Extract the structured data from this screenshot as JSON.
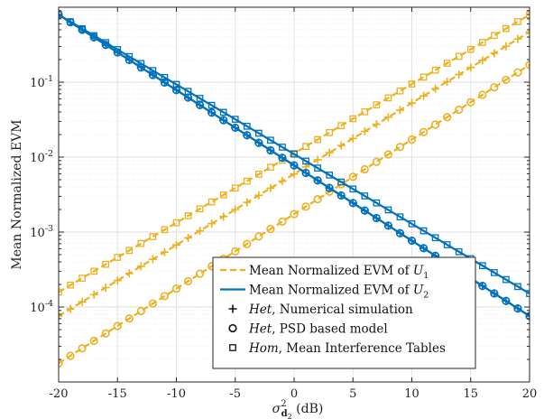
{
  "chart_data": {
    "type": "line",
    "y_scale": "log",
    "grid": true,
    "legend_position": "bottom-right",
    "xlabel": "σ²_d₂ (dB)",
    "ylabel": "Mean Normalized EVM",
    "xlim": [
      -20,
      20
    ],
    "ylim_exponents": [
      -5,
      0
    ],
    "x_ticks": [
      "-20",
      "-15",
      "-10",
      "-5",
      "0",
      "5",
      "10",
      "15",
      "20"
    ],
    "y_ticks": [
      "10^-4",
      "10^-3",
      "10^-2",
      "10^-1"
    ],
    "colors": {
      "U1": "#EDB120",
      "U2": "#0072BD"
    },
    "series": [
      {
        "user": "U1",
        "method": "Hom",
        "x_start": -20,
        "x_end": 20,
        "log10_y_start": -3.8,
        "log10_y_end": -0.1,
        "marker": "square",
        "line": "dashed"
      },
      {
        "user": "U1",
        "method": "Het-sim",
        "x_start": -20,
        "x_end": 20,
        "log10_y_start": -4.12,
        "log10_y_end": -0.33,
        "marker": "plus",
        "line": "dashed"
      },
      {
        "user": "U1",
        "method": "Het-PSD",
        "x_start": -20,
        "x_end": 20,
        "log10_y_start": -4.75,
        "log10_y_end": -0.77,
        "marker": "circle",
        "line": "dashed"
      },
      {
        "user": "U2",
        "method": "Hom",
        "x_start": -20,
        "x_end": 20,
        "log10_y_start": -0.1,
        "log10_y_end": -3.82,
        "marker": "square",
        "line": "solid"
      },
      {
        "user": "U2",
        "method": "Het-sim",
        "x_start": -20,
        "x_end": 20,
        "log10_y_start": -0.1,
        "log10_y_end": -4.12,
        "marker": "plus",
        "line": "solid"
      },
      {
        "user": "U2",
        "method": "Het-PSD",
        "x_start": -20,
        "x_end": 20,
        "log10_y_start": -0.1,
        "log10_y_end": -4.12,
        "marker": "circle",
        "line": "solid"
      }
    ],
    "legend": [
      {
        "prefix": "",
        "text": "Mean Normalized EVM of ",
        "sym": "U",
        "sub": "1",
        "kind": "dashed-u1"
      },
      {
        "prefix": "",
        "text": "Mean Normalized EVM of ",
        "sym": "U",
        "sub": "2",
        "kind": "solid-u2"
      },
      {
        "prefix": "Het",
        "text": ", Numerical simulation",
        "sym": "",
        "sub": "",
        "kind": "plus"
      },
      {
        "prefix": "Het",
        "text": ", PSD based model",
        "sym": "",
        "sub": "",
        "kind": "circle"
      },
      {
        "prefix": "Hom",
        "text": ", Mean Interference Tables",
        "sym": "",
        "sub": "",
        "kind": "square"
      }
    ]
  }
}
